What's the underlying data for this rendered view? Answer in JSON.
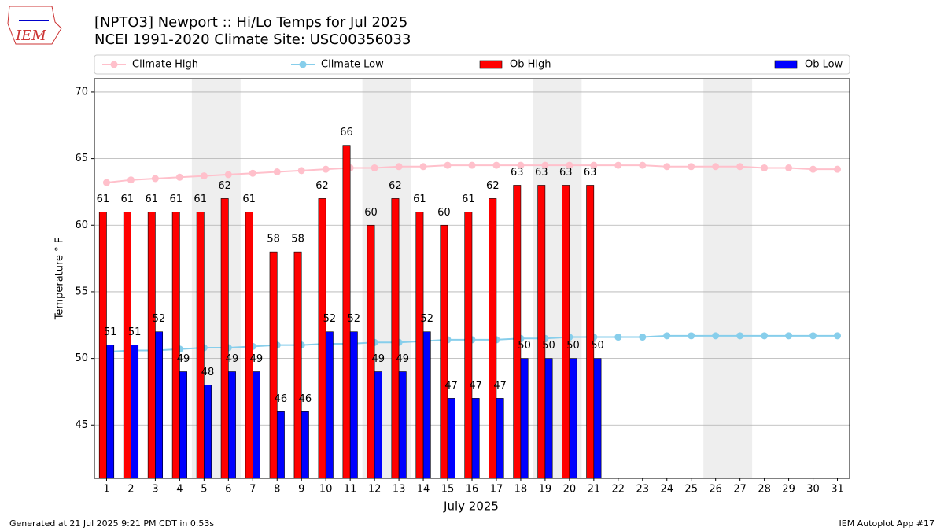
{
  "chart_data": {
    "type": "bar",
    "title": "[NPTO3] Newport :: Hi/Lo Temps for Jul 2025",
    "subtitle": "NCEI 1991-2020 Climate Site: USC00356033",
    "logo_text": "IEM",
    "xlabel": "July 2025",
    "ylabel": "Temperature $^\\circ$F",
    "footer_left": "Generated at 21 Jul 2025 9:21 PM CDT in 0.53s",
    "footer_right": "IEM Autoplot App #17",
    "x": [
      1,
      2,
      3,
      4,
      5,
      6,
      7,
      8,
      9,
      10,
      11,
      12,
      13,
      14,
      15,
      16,
      17,
      18,
      19,
      20,
      21,
      22,
      23,
      24,
      25,
      26,
      27,
      28,
      29,
      30,
      31
    ],
    "xlim": [
      0.5,
      31.5
    ],
    "xticks": [
      1,
      2,
      3,
      4,
      5,
      6,
      7,
      8,
      9,
      10,
      11,
      12,
      13,
      14,
      15,
      16,
      17,
      18,
      19,
      20,
      21,
      22,
      23,
      24,
      25,
      26,
      27,
      28,
      29,
      30,
      31
    ],
    "ylim": [
      41,
      71
    ],
    "yticks": [
      45,
      50,
      55,
      60,
      65,
      70
    ],
    "grid": true,
    "legend": "top",
    "series": [
      {
        "name": "Climate High",
        "kind": "line",
        "color": "#ffc0cb",
        "values": [
          63.2,
          63.4,
          63.5,
          63.6,
          63.7,
          63.8,
          63.9,
          64.0,
          64.1,
          64.2,
          64.3,
          64.3,
          64.4,
          64.4,
          64.5,
          64.5,
          64.5,
          64.5,
          64.5,
          64.5,
          64.5,
          64.5,
          64.5,
          64.4,
          64.4,
          64.4,
          64.4,
          64.3,
          64.3,
          64.2,
          64.2
        ]
      },
      {
        "name": "Climate Low",
        "kind": "line",
        "color": "#87ceeb",
        "values": [
          50.5,
          50.6,
          50.6,
          50.7,
          50.8,
          50.8,
          50.9,
          51.0,
          51.0,
          51.1,
          51.1,
          51.2,
          51.2,
          51.3,
          51.4,
          51.4,
          51.4,
          51.5,
          51.5,
          51.6,
          51.6,
          51.6,
          51.6,
          51.7,
          51.7,
          51.7,
          51.7,
          51.7,
          51.7,
          51.7,
          51.7
        ]
      },
      {
        "name": "Ob High",
        "kind": "bar",
        "color": "#ff0000",
        "values": [
          61,
          61,
          61,
          61,
          61,
          62,
          61,
          58,
          58,
          62,
          66,
          60,
          62,
          61,
          60,
          61,
          62,
          63,
          63,
          63,
          63,
          null,
          null,
          null,
          null,
          null,
          null,
          null,
          null,
          null,
          null
        ]
      },
      {
        "name": "Ob Low",
        "kind": "bar",
        "color": "#0000ff",
        "values": [
          51,
          51,
          52,
          49,
          48,
          49,
          49,
          46,
          46,
          52,
          52,
          49,
          49,
          52,
          47,
          47,
          47,
          50,
          50,
          50,
          50,
          null,
          null,
          null,
          null,
          null,
          null,
          null,
          null,
          null,
          null
        ]
      }
    ]
  }
}
